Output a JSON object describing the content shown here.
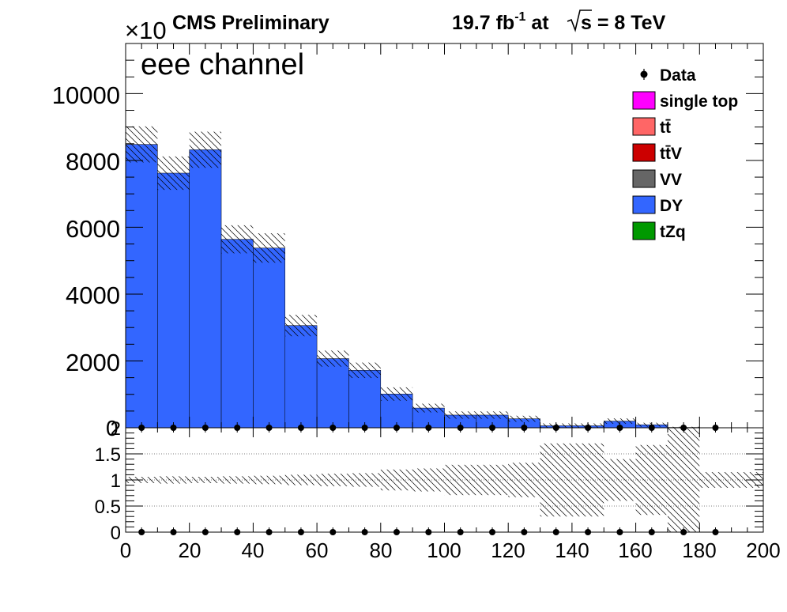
{
  "header": {
    "experiment": "CMS Preliminary",
    "lumi_value": "19.7 fb",
    "lumi_exp": "-1",
    "lumi_at": " at",
    "sqrt_s": "s",
    "energy": " = 8 TeV"
  },
  "upper_panel": {
    "channel_label": "eee channel",
    "exponent_times": "×10",
    "yticks": [
      "2000",
      "4000",
      "6000",
      "8000",
      "10000"
    ],
    "zero_label": "0"
  },
  "ratio_panel": {
    "yticks": [
      "0",
      "0.5",
      "1",
      "1.5",
      "2"
    ]
  },
  "x_axis": {
    "ticks": [
      "0",
      "20",
      "40",
      "60",
      "80",
      "100",
      "120",
      "140",
      "160",
      "180",
      "200"
    ]
  },
  "legend": {
    "items": [
      {
        "label": "Data",
        "style": "marker",
        "color": "#000000"
      },
      {
        "label": "single top",
        "style": "box",
        "color": "#ff00ff"
      },
      {
        "label": "tt̄",
        "style": "box",
        "color": "#ff6666"
      },
      {
        "label": "tt̄V",
        "style": "box",
        "color": "#cc0000"
      },
      {
        "label": "VV",
        "style": "box",
        "color": "#666666"
      },
      {
        "label": "DY",
        "style": "box",
        "color": "#3366ff"
      },
      {
        "label": "tZq",
        "style": "box",
        "color": "#009900"
      }
    ]
  },
  "chart_data": {
    "type": "bar",
    "x_bin_edges": [
      0,
      10,
      20,
      30,
      40,
      50,
      60,
      70,
      80,
      90,
      100,
      110,
      120,
      130,
      140,
      150,
      160,
      170,
      180,
      190,
      200
    ],
    "xlim": [
      0,
      200
    ],
    "ylim": [
      0,
      11500
    ],
    "series": [
      {
        "name": "DY",
        "color": "#3366ff",
        "values": [
          8480,
          7620,
          8320,
          5640,
          5380,
          3060,
          2070,
          1720,
          1010,
          590,
          380,
          380,
          270,
          60,
          60,
          200,
          90,
          10,
          0,
          0
        ]
      }
    ],
    "mc_uncertainty": [
      540,
      500,
      540,
      420,
      440,
      320,
      240,
      230,
      200,
      130,
      110,
      110,
      90,
      70,
      70,
      80,
      60,
      20,
      0,
      0
    ],
    "data": {
      "name": "Data",
      "x": [
        5,
        15,
        25,
        35,
        45,
        55,
        65,
        75,
        85,
        95,
        105,
        115,
        125,
        135,
        145,
        155,
        165,
        175,
        185
      ],
      "y": [
        0,
        0,
        0,
        0,
        0,
        0,
        0,
        0,
        0,
        0,
        0,
        0,
        0,
        0,
        0,
        0,
        0,
        0,
        0
      ]
    },
    "ratio": {
      "ylim": [
        0,
        2
      ],
      "gridlines": [
        0.5,
        1,
        1.5
      ],
      "data_ratio": [
        0,
        0,
        0,
        0,
        0,
        0,
        0,
        0,
        0,
        0,
        0,
        0,
        0,
        0,
        0,
        0,
        0,
        0,
        0
      ],
      "unc_low": [
        0.94,
        0.93,
        0.94,
        0.93,
        0.92,
        0.9,
        0.88,
        0.87,
        0.8,
        0.78,
        0.71,
        0.71,
        0.67,
        0.3,
        0.3,
        0.6,
        0.33,
        0.0,
        0.85,
        0.85
      ],
      "unc_high": [
        1.06,
        1.07,
        1.06,
        1.07,
        1.08,
        1.1,
        1.12,
        1.13,
        1.2,
        1.22,
        1.29,
        1.29,
        1.33,
        1.7,
        1.7,
        1.4,
        1.67,
        2.0,
        1.15,
        1.15
      ]
    }
  }
}
